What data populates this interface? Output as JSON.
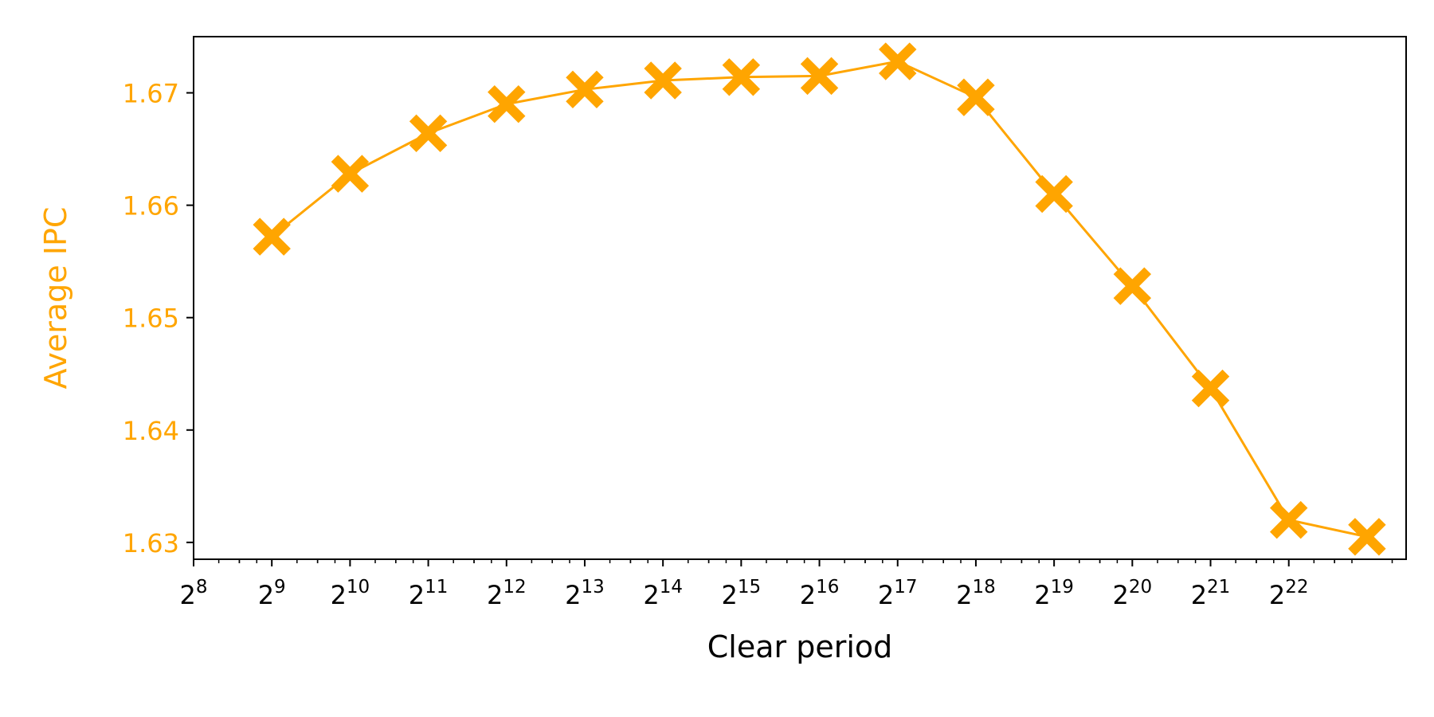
{
  "chart_data": {
    "type": "line",
    "title": "",
    "xlabel": "Clear period",
    "ylabel": "Average IPC",
    "x_scale": "log2",
    "grid": false,
    "legend": "none",
    "x_ticks": [
      {
        "base": "2",
        "exp": "8"
      },
      {
        "base": "2",
        "exp": "9"
      },
      {
        "base": "2",
        "exp": "10"
      },
      {
        "base": "2",
        "exp": "11"
      },
      {
        "base": "2",
        "exp": "12"
      },
      {
        "base": "2",
        "exp": "13"
      },
      {
        "base": "2",
        "exp": "14"
      },
      {
        "base": "2",
        "exp": "15"
      },
      {
        "base": "2",
        "exp": "16"
      },
      {
        "base": "2",
        "exp": "17"
      },
      {
        "base": "2",
        "exp": "18"
      },
      {
        "base": "2",
        "exp": "19"
      },
      {
        "base": "2",
        "exp": "20"
      },
      {
        "base": "2",
        "exp": "21"
      },
      {
        "base": "2",
        "exp": "22"
      }
    ],
    "y_ticks": [
      "1.63",
      "1.64",
      "1.65",
      "1.66",
      "1.67"
    ],
    "ylim": [
      1.6285,
      1.675
    ],
    "x": [
      "2^9",
      "2^10",
      "2^11",
      "2^12",
      "2^13",
      "2^14",
      "2^15",
      "2^16",
      "2^17",
      "2^18",
      "2^19",
      "2^20",
      "2^21",
      "2^22",
      "2^23"
    ],
    "series": [
      {
        "color": "#FFA500",
        "marker": "X",
        "values": [
          1.6572,
          1.6628,
          1.6664,
          1.669,
          1.6703,
          1.6711,
          1.6714,
          1.6715,
          1.6728,
          1.6696,
          1.661,
          1.6528,
          1.6437,
          1.632,
          1.6305
        ]
      }
    ],
    "colors": {
      "accent": "#FFA500",
      "axis": "#000000"
    }
  }
}
